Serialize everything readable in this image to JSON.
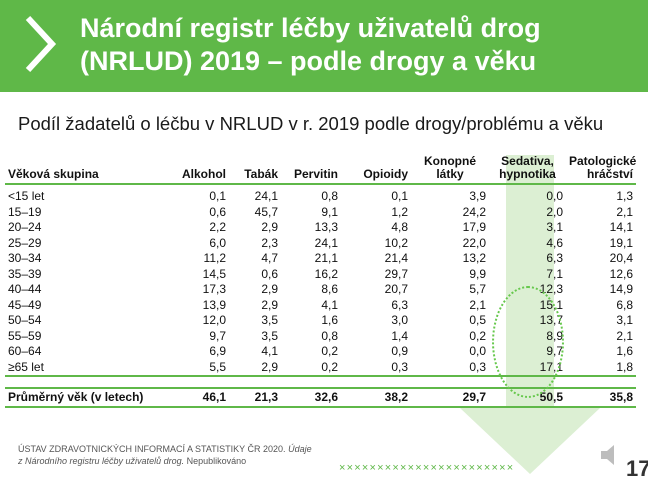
{
  "header": {
    "title_line1": "Národní registr léčby uživatelů drog",
    "title_line2": "(NRLUD) 2019 – podle drogy a věku"
  },
  "subtitle": "Podíl žadatelů o léčbu v NRLUD v r. 2019 podle drogy/problému a věku",
  "table": {
    "headers": [
      "Věková skupina",
      "Alkohol",
      "Tabák",
      "Pervitin",
      "Opioidy",
      "Konopné látky",
      "Sedativa, hypnotika",
      "Patologické hráčství"
    ],
    "rows": [
      [
        "<15 let",
        "0,1",
        "24,1",
        "0,8",
        "0,1",
        "3,9",
        "0,0",
        "1,3"
      ],
      [
        "15–19",
        "0,6",
        "45,7",
        "9,1",
        "1,2",
        "24,2",
        "2,0",
        "2,1"
      ],
      [
        "20–24",
        "2,2",
        "2,9",
        "13,3",
        "4,8",
        "17,9",
        "3,1",
        "14,1"
      ],
      [
        "25–29",
        "6,0",
        "2,3",
        "24,1",
        "10,2",
        "22,0",
        "4,6",
        "19,1"
      ],
      [
        "30–34",
        "11,2",
        "4,7",
        "21,1",
        "21,4",
        "13,2",
        "6,3",
        "20,4"
      ],
      [
        "35–39",
        "14,5",
        "0,6",
        "16,2",
        "29,7",
        "9,9",
        "7,1",
        "12,6"
      ],
      [
        "40–44",
        "17,3",
        "2,9",
        "8,6",
        "20,7",
        "5,7",
        "12,3",
        "14,9"
      ],
      [
        "45–49",
        "13,9",
        "2,9",
        "4,1",
        "6,3",
        "2,1",
        "15,1",
        "6,8"
      ],
      [
        "50–54",
        "12,0",
        "3,5",
        "1,6",
        "3,0",
        "0,5",
        "13,7",
        "3,1"
      ],
      [
        "55–59",
        "9,7",
        "3,5",
        "0,8",
        "1,4",
        "0,2",
        "8,9",
        "2,1"
      ],
      [
        "60–64",
        "6,9",
        "4,1",
        "0,2",
        "0,9",
        "0,0",
        "9,7",
        "1,6"
      ],
      [
        "≥65 let",
        "5,5",
        "2,9",
        "0,2",
        "0,3",
        "0,3",
        "17,1",
        "1,8"
      ]
    ],
    "total": [
      "Průměrný věk (v letech)",
      "46,1",
      "21,3",
      "32,6",
      "38,2",
      "29,7",
      "50,5",
      "35,8"
    ]
  },
  "footer": {
    "line1": "ÚSTAV ZDRAVOTNICKÝCH INFORMACÍ A STATISTIKY ČR 2020.",
    "line1_italic": "Údaje",
    "line2_italic": "z Národního registru léčby uživatelů drog.",
    "line2_rest": "Nepublikováno"
  },
  "decor": {
    "crosses": "×××××××××××××××××××××××",
    "page_number": "17"
  },
  "colors": {
    "accent": "#5fb848",
    "arrow": "#dcefd3"
  }
}
